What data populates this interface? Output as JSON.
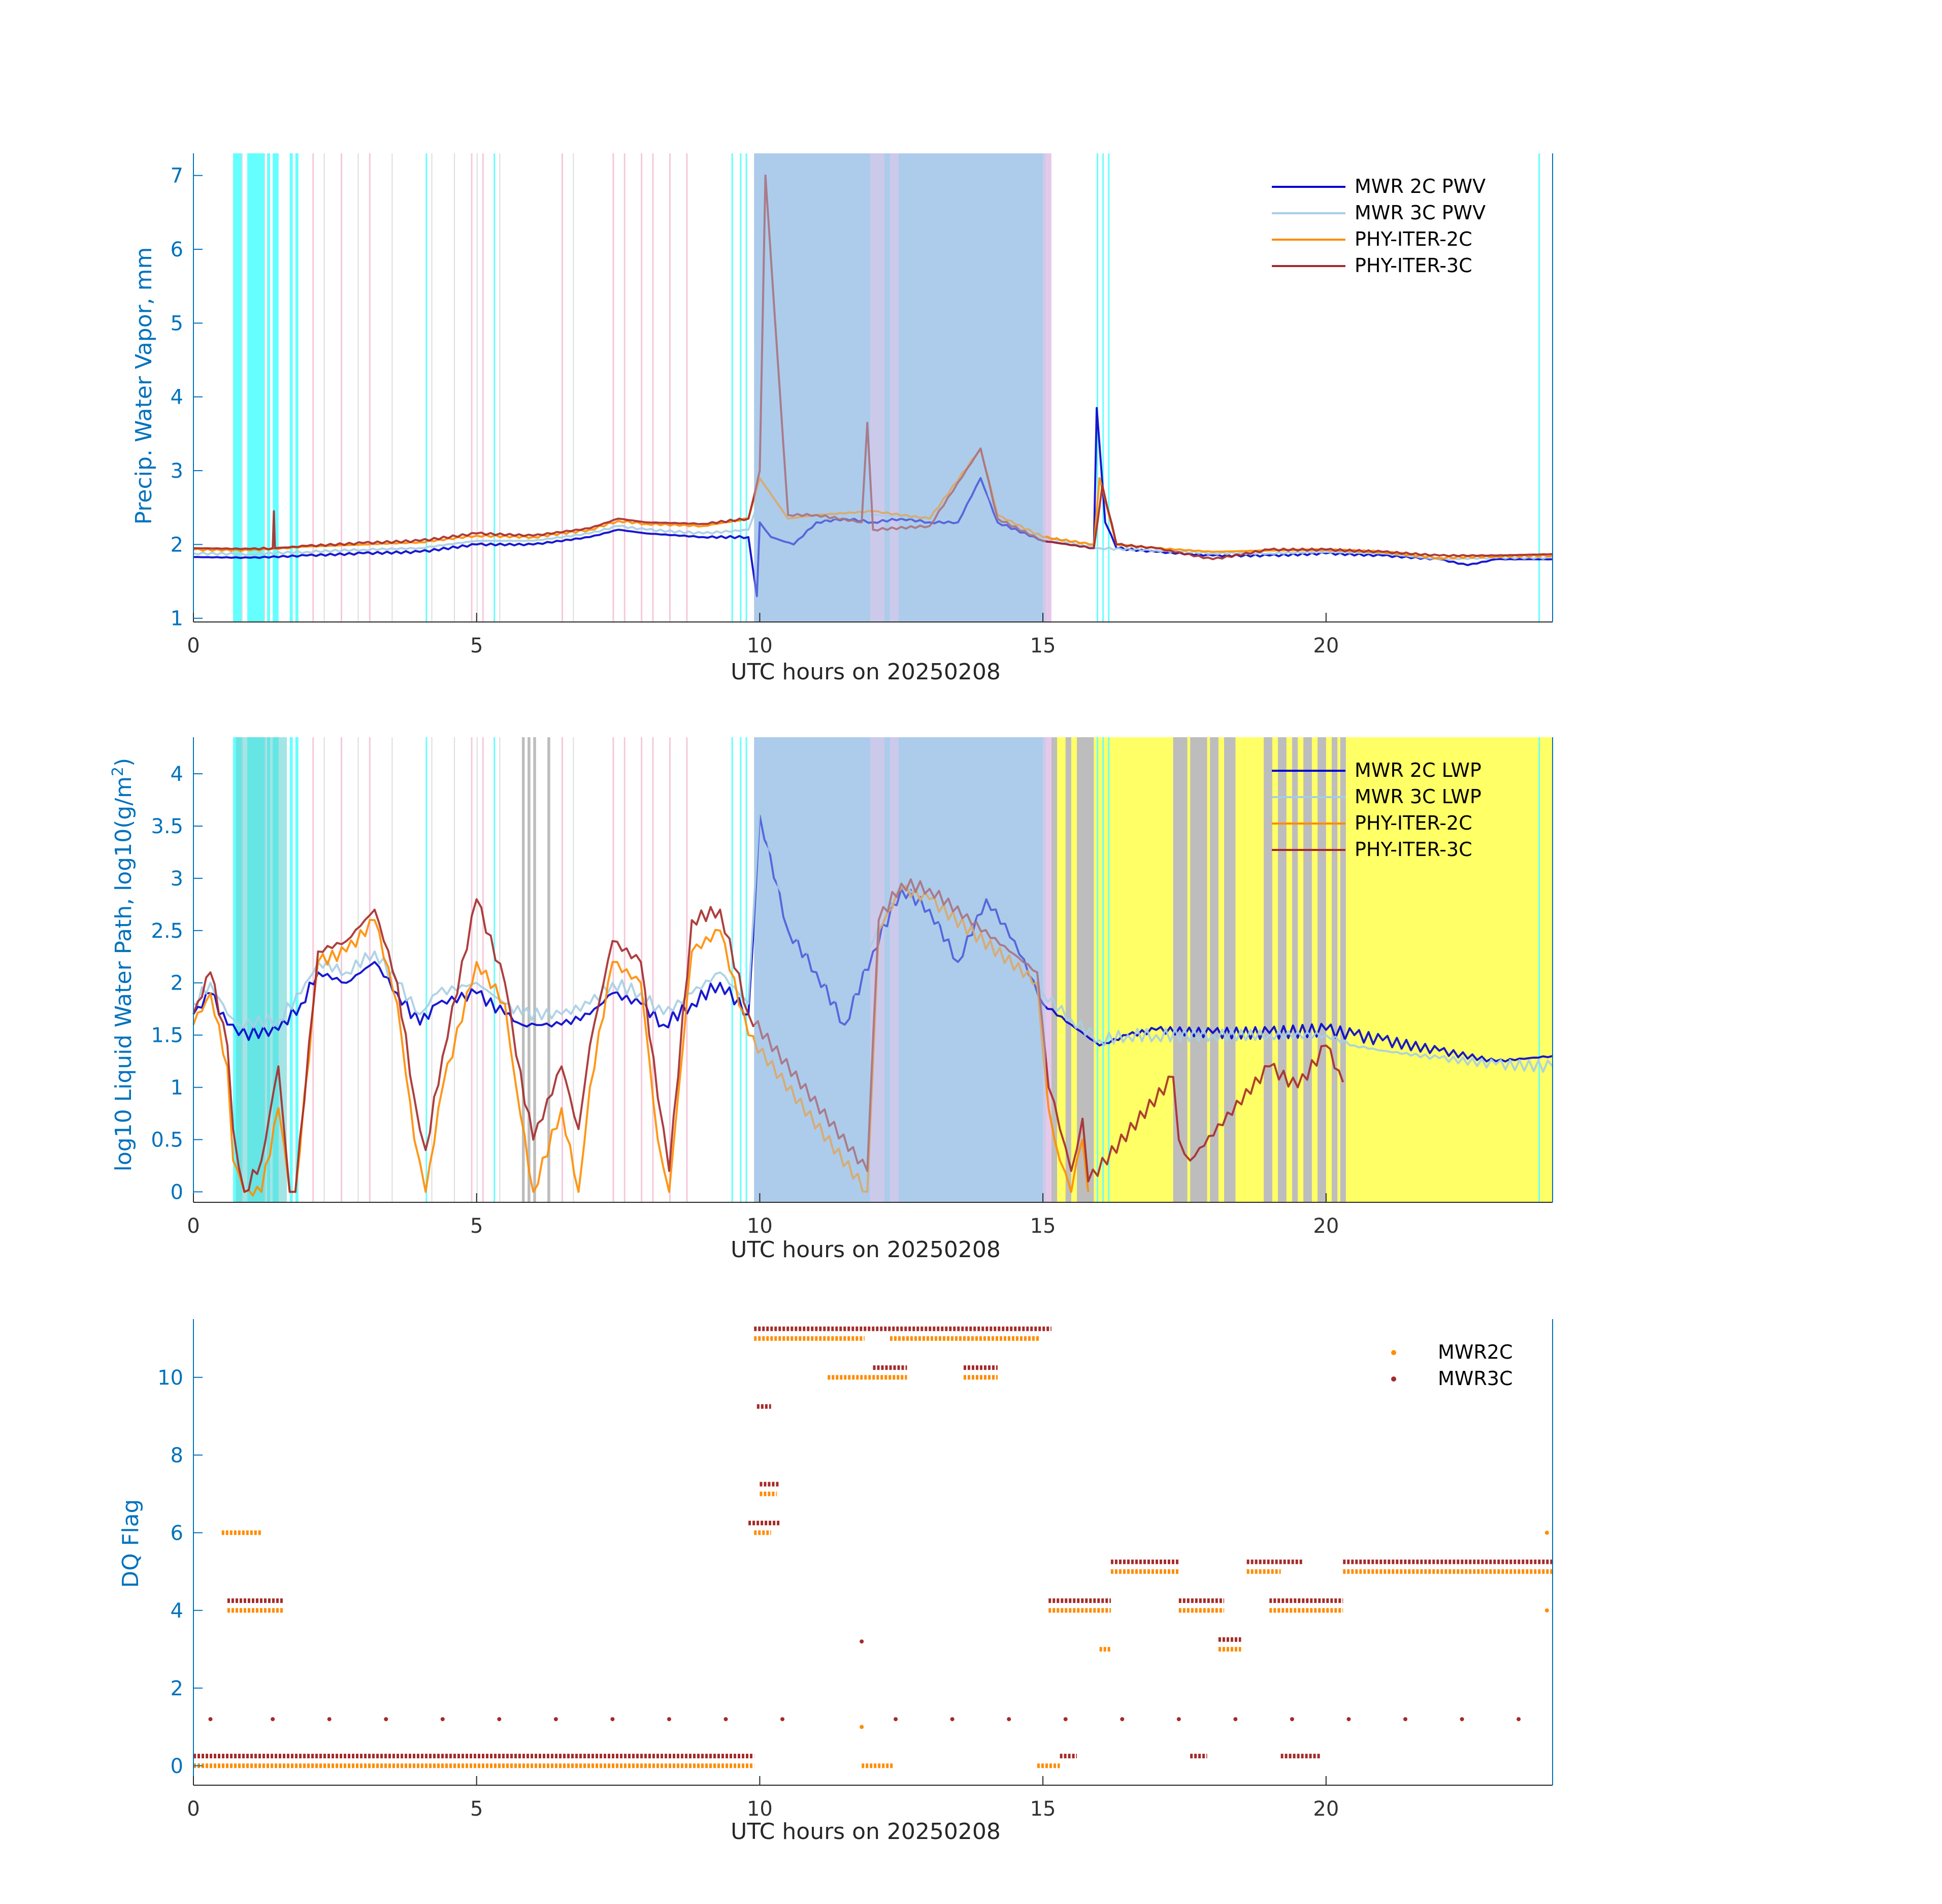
{
  "chart_data": [
    {
      "type": "line",
      "panel": "top",
      "ylabel": "Precip. Water Vapor, mm",
      "xlabel": "UTC hours on 20250208",
      "xlim": [
        0,
        24
      ],
      "ylim": [
        0.95,
        7.3
      ],
      "xticks": [
        0,
        5,
        10,
        15,
        20
      ],
      "yticks": [
        1,
        2,
        3,
        4,
        5,
        6,
        7
      ],
      "legend": [
        "MWR 2C PWV",
        "MWR 3C PWV",
        "PHY-ITER-2C",
        "PHY-ITER-3C"
      ],
      "legend_position": "top-right",
      "series": [
        {
          "name": "MWR 2C PWV",
          "color": "#0000CC",
          "x": [
            0,
            1,
            2,
            3,
            4,
            5,
            6,
            7,
            7.5,
            8,
            9,
            9.8,
            9.95,
            10.0,
            10.2,
            10.6,
            11,
            11.5,
            12,
            12.5,
            13,
            13.5,
            13.9,
            14.2,
            15,
            15.9,
            15.95,
            16.1,
            16.3,
            17,
            18,
            19,
            20,
            21,
            22,
            22.5,
            23,
            24
          ],
          "values": [
            1.83,
            1.82,
            1.85,
            1.88,
            1.9,
            2.0,
            2.0,
            2.1,
            2.2,
            2.15,
            2.1,
            2.1,
            1.3,
            2.3,
            2.1,
            2.0,
            2.3,
            2.35,
            2.3,
            2.35,
            2.3,
            2.3,
            2.9,
            2.3,
            2.05,
            1.95,
            3.85,
            2.3,
            1.95,
            1.9,
            1.85,
            1.85,
            1.88,
            1.85,
            1.8,
            1.72,
            1.8,
            1.8
          ]
        },
        {
          "name": "MWR 3C PWV",
          "color": "#A6CEE3",
          "x": [
            0,
            1,
            2,
            3,
            4,
            5,
            6,
            7,
            7.5,
            8,
            9,
            9.8,
            10,
            10.5,
            11,
            12,
            13,
            13.9,
            14.2,
            15,
            16,
            17,
            18,
            19,
            20,
            21,
            22,
            23,
            24
          ],
          "values": [
            1.88,
            1.87,
            1.9,
            1.93,
            1.95,
            2.05,
            2.05,
            2.15,
            2.25,
            2.2,
            2.15,
            2.2,
            2.6,
            2.2,
            2.35,
            2.4,
            2.35,
            3.0,
            2.35,
            2.1,
            1.95,
            1.92,
            1.88,
            1.88,
            1.9,
            1.88,
            1.8,
            1.82,
            1.82
          ]
        },
        {
          "name": "PHY-ITER-2C",
          "color": "#FF8C00",
          "x": [
            0,
            1,
            2,
            3,
            4,
            5,
            6,
            7,
            7.5,
            8,
            9,
            9.8,
            10,
            10.5,
            11,
            12,
            13,
            13.9,
            14.2,
            15,
            15.9,
            16,
            16.3,
            17,
            18,
            19,
            20,
            21,
            22,
            23,
            24
          ],
          "values": [
            1.93,
            1.92,
            1.97,
            2.0,
            2.03,
            2.12,
            2.1,
            2.2,
            2.32,
            2.28,
            2.25,
            2.35,
            2.9,
            2.35,
            2.4,
            2.45,
            2.35,
            3.3,
            2.4,
            2.1,
            2.0,
            2.9,
            2.0,
            1.95,
            1.9,
            1.92,
            1.93,
            1.9,
            1.82,
            1.84,
            1.85
          ]
        },
        {
          "name": "PHY-ITER-3C",
          "color": "#A52A2A",
          "x": [
            0,
            1,
            1.4,
            1.42,
            1.44,
            2,
            3,
            4,
            5,
            6,
            7,
            7.5,
            8,
            9,
            9.8,
            10,
            10.1,
            10.5,
            11,
            11.8,
            11.9,
            12,
            13,
            13.9,
            14.2,
            15,
            15.9,
            16.05,
            16.3,
            17,
            18,
            19,
            20,
            21,
            22,
            23,
            24
          ],
          "values": [
            1.95,
            1.94,
            1.95,
            2.45,
            1.95,
            1.98,
            2.02,
            2.05,
            2.15,
            2.12,
            2.22,
            2.35,
            2.3,
            2.28,
            2.35,
            3.0,
            7.0,
            2.4,
            2.4,
            2.3,
            3.65,
            2.2,
            2.25,
            3.3,
            2.35,
            2.05,
            1.95,
            2.8,
            2.0,
            1.95,
            1.8,
            1.93,
            1.93,
            1.9,
            1.85,
            1.85,
            1.87
          ]
        }
      ]
    },
    {
      "type": "line",
      "panel": "middle",
      "ylabel": "log10 Liquid Water Path, log10(g/m",
      "ylabel_sup": "2",
      "ylabel_end": ")",
      "xlabel": "UTC hours on 20250208",
      "xlim": [
        0,
        24
      ],
      "ylim": [
        -0.1,
        4.35
      ],
      "xticks": [
        0,
        5,
        10,
        15,
        20
      ],
      "yticks": [
        0,
        0.5,
        1,
        1.5,
        2,
        2.5,
        3,
        3.5,
        4
      ],
      "ytick_labels": [
        "0",
        "0.5",
        "1",
        "1.5",
        "2",
        "2.5",
        "3",
        "3.5",
        "4"
      ],
      "legend": [
        "MWR 2C LWP",
        "MWR 3C LWP",
        "PHY-ITER-2C",
        "PHY-ITER-3C"
      ],
      "legend_position": "top-right",
      "series": [
        {
          "name": "MWR 2C LWP",
          "color": "#0000CC",
          "x": [
            0,
            0.3,
            0.6,
            0.8,
            1.5,
            1.9,
            2.2,
            2.7,
            3.2,
            3.6,
            4,
            4.3,
            5,
            5.5,
            5.8,
            6.5,
            7,
            7.4,
            7.9,
            8.3,
            8.8,
            9.3,
            9.8,
            10,
            10.5,
            11,
            11.5,
            12,
            12.5,
            13,
            13.5,
            14,
            14.5,
            15,
            15.5,
            16,
            16.5,
            17,
            18,
            19,
            20,
            20.5,
            21,
            22,
            23,
            24
          ],
          "values": [
            1.7,
            1.9,
            1.6,
            1.5,
            1.55,
            1.8,
            2.1,
            2.0,
            2.2,
            1.9,
            1.6,
            1.8,
            1.9,
            1.7,
            1.6,
            1.6,
            1.7,
            1.9,
            1.8,
            1.6,
            1.8,
            2.0,
            1.7,
            3.6,
            2.5,
            2.1,
            1.6,
            2.3,
            2.9,
            2.7,
            2.2,
            2.8,
            2.4,
            1.8,
            1.6,
            1.4,
            1.5,
            1.55,
            1.52,
            1.52,
            1.55,
            1.5,
            1.45,
            1.35,
            1.25,
            1.3
          ]
        },
        {
          "name": "MWR 3C LWP",
          "color": "#A6CEE3",
          "x": [
            0,
            0.3,
            0.6,
            0.8,
            1.5,
            1.9,
            2.2,
            2.7,
            3.2,
            3.6,
            4,
            4.3,
            5,
            5.5,
            5.8,
            6.5,
            7,
            7.4,
            7.9,
            8.3,
            8.8,
            9.3,
            9.8,
            10,
            10.5,
            11,
            11.5,
            12,
            12.5,
            13,
            13.5,
            14,
            14.5,
            15,
            15.5,
            16,
            16.5,
            17,
            18,
            19,
            20,
            20.5,
            21,
            22,
            23,
            24
          ],
          "values": [
            1.8,
            2.0,
            1.7,
            1.6,
            1.65,
            1.9,
            2.2,
            2.1,
            2.3,
            2.0,
            1.7,
            1.9,
            2.0,
            1.8,
            1.7,
            1.7,
            1.8,
            2.0,
            1.9,
            1.7,
            1.9,
            2.1,
            1.8,
            3.7,
            2.6,
            2.2,
            1.7,
            2.4,
            2.95,
            2.75,
            2.3,
            2.85,
            2.5,
            1.9,
            1.65,
            1.45,
            1.5,
            1.5,
            1.5,
            1.5,
            1.5,
            1.4,
            1.35,
            1.28,
            1.22,
            1.2
          ]
        },
        {
          "name": "PHY-ITER-2C",
          "color": "#FF8C00",
          "x": [
            0,
            0.3,
            0.6,
            0.7,
            0.9,
            1.2,
            1.5,
            1.7,
            1.8,
            2.2,
            2.7,
            3.2,
            3.6,
            3.9,
            4.1,
            4.4,
            5,
            5.5,
            5.7,
            6.0,
            6.5,
            6.8,
            7.0,
            7.4,
            7.9,
            8.2,
            8.4,
            8.8,
            9.3,
            9.8,
            11.9,
            12.1,
            12.5,
            13.0,
            14.9,
            15.1,
            15.3,
            15.5,
            15.7,
            15.8
          ],
          "values": [
            1.6,
            1.9,
            1.2,
            0.3,
            0.0,
            0.0,
            0.8,
            0.0,
            0.0,
            2.2,
            2.3,
            2.6,
            1.8,
            0.5,
            0.0,
            1.0,
            2.2,
            1.8,
            1.0,
            0.0,
            0.8,
            0.0,
            1.0,
            2.2,
            2.0,
            0.5,
            0.0,
            2.3,
            2.5,
            1.5,
            0.0,
            2.5,
            2.9,
            2.8,
            2.0,
            0.8,
            0.3,
            0.0,
            0.5,
            0.0
          ]
        },
        {
          "name": "PHY-ITER-3C",
          "color": "#A52A2A",
          "x": [
            0,
            0.3,
            0.6,
            0.7,
            0.9,
            1.2,
            1.5,
            1.7,
            1.8,
            2.2,
            2.7,
            3.2,
            3.6,
            3.9,
            4.1,
            4.4,
            5,
            5.5,
            5.7,
            6.0,
            6.5,
            6.8,
            7.0,
            7.4,
            7.9,
            8.2,
            8.4,
            8.8,
            9.3,
            9.8,
            11.9,
            12.1,
            12.5,
            13.0,
            14.9,
            15.1,
            15.3,
            15.5,
            15.7,
            15.8,
            17.3,
            17.4,
            17.6,
            19.0,
            19.5,
            20.0,
            20.3
          ],
          "values": [
            1.7,
            2.1,
            1.4,
            0.6,
            0.0,
            0.3,
            1.2,
            0.0,
            0.0,
            2.3,
            2.4,
            2.7,
            2.0,
            0.9,
            0.4,
            1.3,
            2.8,
            2.0,
            1.3,
            0.5,
            1.2,
            0.6,
            1.4,
            2.4,
            2.2,
            0.9,
            0.2,
            2.6,
            2.7,
            1.7,
            0.2,
            2.6,
            2.95,
            2.9,
            2.1,
            1.0,
            0.6,
            0.2,
            0.7,
            0.1,
            1.1,
            0.5,
            0.3,
            1.2,
            1.0,
            1.4,
            1.05
          ]
        }
      ]
    },
    {
      "type": "scatter",
      "panel": "bottom",
      "ylabel": "DQ Flag",
      "xlabel": "UTC hours on 20250208",
      "xlim": [
        0,
        24
      ],
      "ylim": [
        -0.5,
        11.5
      ],
      "xticks": [
        0,
        5,
        10,
        15,
        20
      ],
      "yticks": [
        0,
        2,
        4,
        6,
        8,
        10
      ],
      "legend": [
        "MWR2C",
        "MWR3C"
      ],
      "legend_position": "top-right",
      "series": [
        {
          "name": "MWR2C",
          "color": "#FF8C00",
          "marker": "dot",
          "segments": [
            [
              0,
              9.9,
              0
            ],
            [
              9.9,
              11.85,
              11
            ],
            [
              12.3,
              14.95,
              11
            ],
            [
              11.8,
              12.35,
              0
            ],
            [
              14.9,
              15.3,
              0
            ],
            [
              16.2,
              17.4,
              5
            ],
            [
              17.4,
              18.2,
              4
            ],
            [
              18.6,
              19.2,
              5
            ],
            [
              20.3,
              24,
              5
            ],
            [
              9.9,
              10.2,
              6
            ],
            [
              0.5,
              1.2,
              6
            ],
            [
              0.6,
              1.6,
              4
            ],
            [
              15.1,
              16.2,
              4
            ],
            [
              19.0,
              20.3,
              4
            ],
            [
              18.1,
              18.5,
              3
            ],
            [
              16.0,
              16.2,
              3
            ],
            [
              11.2,
              12.6,
              10
            ],
            [
              13.6,
              14.2,
              10
            ],
            [
              10.0,
              10.3,
              7
            ]
          ]
        },
        {
          "name": "MWR3C",
          "color": "#A52A2A",
          "marker": "dot",
          "segments": [
            [
              0,
              9.9,
              0.25
            ],
            [
              9.9,
              15.15,
              11.25
            ],
            [
              12.0,
              12.6,
              10.25
            ],
            [
              13.6,
              14.2,
              10.25
            ],
            [
              9.95,
              10.2,
              9.25
            ],
            [
              10.0,
              10.35,
              7.25
            ],
            [
              9.8,
              10.35,
              6.25
            ],
            [
              16.2,
              17.4,
              5.25
            ],
            [
              18.6,
              19.6,
              5.25
            ],
            [
              20.3,
              24,
              5.25
            ],
            [
              17.4,
              18.2,
              4.25
            ],
            [
              15.1,
              16.2,
              4.25
            ],
            [
              19.0,
              20.3,
              4.25
            ],
            [
              0.6,
              1.6,
              4.25
            ],
            [
              18.1,
              18.5,
              3.25
            ],
            [
              15.3,
              15.6,
              0.25
            ],
            [
              17.6,
              17.9,
              0.25
            ],
            [
              19.2,
              19.9,
              0.25
            ]
          ]
        }
      ]
    }
  ]
}
